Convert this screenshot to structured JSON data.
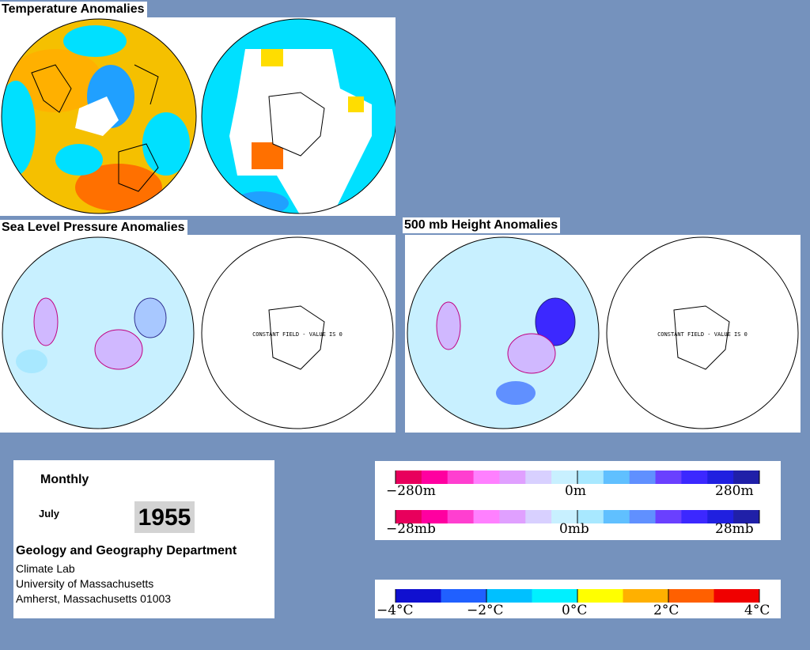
{
  "titles": {
    "temperature": "Temperature Anomalies",
    "slp": "Sea Level Pressure Anomalies",
    "height500": "500 mb Height Anomalies"
  },
  "maps": {
    "constant_field_label": "CONSTANT FIELD - VALUE IS 0"
  },
  "info": {
    "period": "Monthly",
    "month": "July",
    "year": "1955",
    "department": "Geology and Geography Department",
    "lines": [
      "Climate Lab",
      "University of Massachusetts",
      "Amherst, Massachusetts 01003"
    ]
  },
  "legend_height": {
    "ticks": [
      "−280m",
      "0m",
      "280m"
    ],
    "colors": [
      "#e8005c",
      "#ff00a0",
      "#ff3fd0",
      "#ff80ff",
      "#e0a0ff",
      "#d8d0ff",
      "#c8f0ff",
      "#a8e8ff",
      "#60c0ff",
      "#6090ff",
      "#6a40ff",
      "#3c28ff",
      "#2020e0",
      "#2020a8"
    ]
  },
  "legend_pressure": {
    "ticks": [
      "−28mb",
      "0mb",
      "28mb"
    ],
    "colors": [
      "#e8005c",
      "#ff00a0",
      "#ff3fd0",
      "#ff80ff",
      "#e0a0ff",
      "#d8d0ff",
      "#c8f0ff",
      "#a8e8ff",
      "#60c0ff",
      "#6090ff",
      "#6a40ff",
      "#3c28ff",
      "#2020e0",
      "#2020a8"
    ]
  },
  "legend_temperature": {
    "ticks": [
      "−4°C",
      "−2°C",
      "0°C",
      "2°C",
      "4°C"
    ],
    "colors": [
      "#1010d0",
      "#2060ff",
      "#00c0ff",
      "#00f0ff",
      "#ffff00",
      "#ffb000",
      "#ff6000",
      "#f00000"
    ]
  }
}
